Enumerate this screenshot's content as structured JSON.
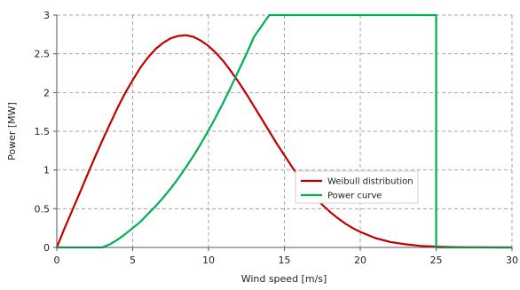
{
  "chart_data": {
    "type": "line",
    "xlabel": "Wind speed [m/s]",
    "ylabel": "Power [MW]",
    "xlim": [
      0,
      30
    ],
    "ylim": [
      0,
      3
    ],
    "xticks": [
      0,
      5,
      10,
      15,
      20,
      25,
      30
    ],
    "yticks": [
      0,
      0.5,
      1,
      1.5,
      2,
      2.5,
      3
    ],
    "ytick_labels": [
      "0",
      "0.5",
      "1",
      "1.5",
      "2",
      "2.5",
      "3"
    ],
    "grid": true,
    "legend_position": "center-right",
    "series": [
      {
        "name": "Weibull distribution",
        "color": "#c00000",
        "x": [
          0,
          0.5,
          1,
          1.5,
          2,
          2.5,
          3,
          3.5,
          4,
          4.5,
          5,
          5.5,
          6,
          6.5,
          7,
          7.5,
          8,
          8.5,
          9,
          9.5,
          10,
          10.5,
          11,
          11.5,
          12,
          12.5,
          13,
          13.5,
          14,
          14.5,
          15,
          15.5,
          16,
          16.5,
          17,
          17.5,
          18,
          18.5,
          19,
          19.5,
          20,
          21,
          22,
          23,
          24,
          25,
          26,
          27,
          28,
          29,
          30
        ],
        "y": [
          0,
          0.24,
          0.47,
          0.7,
          0.93,
          1.16,
          1.38,
          1.59,
          1.8,
          1.99,
          2.16,
          2.32,
          2.45,
          2.56,
          2.64,
          2.7,
          2.73,
          2.74,
          2.72,
          2.67,
          2.6,
          2.51,
          2.4,
          2.27,
          2.13,
          1.98,
          1.82,
          1.66,
          1.5,
          1.34,
          1.19,
          1.04,
          0.9,
          0.77,
          0.66,
          0.55,
          0.46,
          0.38,
          0.31,
          0.25,
          0.2,
          0.12,
          0.07,
          0.04,
          0.02,
          0.01,
          0.005,
          0.002,
          0.001,
          0,
          0
        ]
      },
      {
        "name": "Power curve",
        "color": "#00b050",
        "x": [
          0,
          3,
          3.5,
          4,
          4.5,
          5,
          5.5,
          6,
          6.5,
          7,
          7.5,
          8,
          8.5,
          9,
          9.5,
          10,
          10.5,
          11,
          11.5,
          12,
          12.5,
          13,
          14,
          16,
          18,
          20,
          22,
          24,
          25,
          25,
          30
        ],
        "y": [
          0,
          0,
          0.04,
          0.1,
          0.17,
          0.25,
          0.33,
          0.43,
          0.53,
          0.64,
          0.76,
          0.89,
          1.03,
          1.18,
          1.34,
          1.51,
          1.69,
          1.88,
          2.08,
          2.29,
          2.5,
          2.72,
          3.0,
          3.0,
          3.0,
          3.0,
          3.0,
          3.0,
          3.0,
          0,
          0
        ]
      }
    ]
  }
}
